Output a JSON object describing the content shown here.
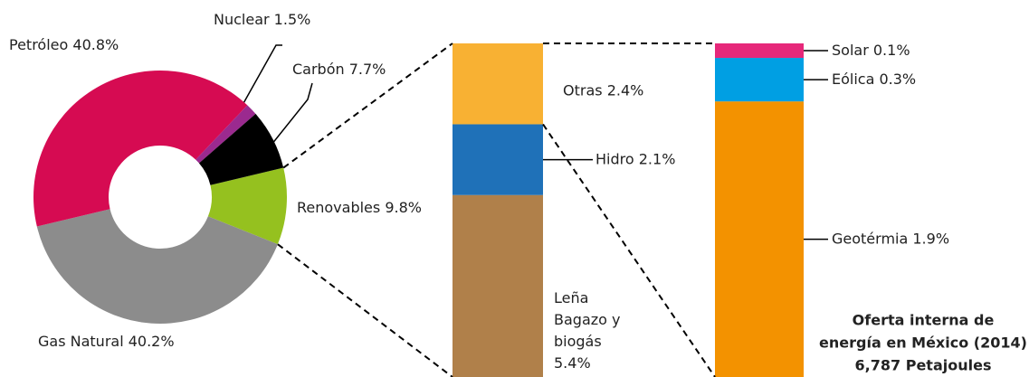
{
  "chart_data": [
    {
      "type": "donut",
      "categories": [
        "Renovables",
        "Gas Natural",
        "Petróleo",
        "Nuclear",
        "Carbón"
      ],
      "values": [
        9.8,
        40.2,
        40.8,
        1.5,
        7.7
      ],
      "value_labels": [
        "9.8%",
        "40.2%",
        "40.8%",
        "1.5%",
        "7.7%"
      ],
      "colors": [
        "#95c11f",
        "#8c8c8c",
        "#d60b52",
        "#9b2a8f",
        "#000000"
      ]
    },
    {
      "type": "stacked-bar",
      "categories": [
        "Leña Bagazo y biogás",
        "Hidro",
        "Otras"
      ],
      "values": [
        5.4,
        2.1,
        2.4
      ],
      "value_labels": [
        "5.4%",
        "2.1%",
        "2.4%"
      ],
      "colors": [
        "#b0804a",
        "#1f71b8",
        "#f8b133"
      ]
    },
    {
      "type": "stacked-bar",
      "categories": [
        "Geotérmia",
        "Eólica",
        "Solar"
      ],
      "values": [
        1.9,
        0.3,
        0.1
      ],
      "value_labels": [
        "1.9%",
        "0.3%",
        "0.1%"
      ],
      "colors": [
        "#f39200",
        "#009fe3",
        "#e6287a"
      ],
      "title": [
        "Oferta interna de",
        "energía en México (2014)"
      ],
      "subtitle": "6,787 Petajoules"
    }
  ]
}
